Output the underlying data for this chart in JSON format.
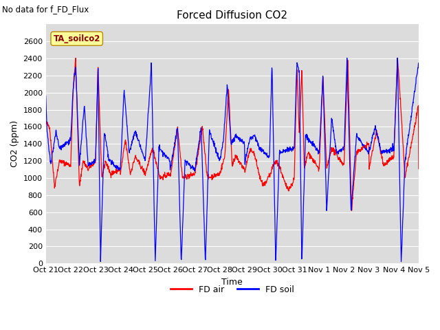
{
  "title": "Forced Diffusion CO2",
  "subtitle": "No data for f_FD_Flux",
  "annotation": "TA_soilco2",
  "xlabel": "Time",
  "ylabel": "CO2 (ppm)",
  "ylim": [
    0,
    2800
  ],
  "yticks": [
    0,
    200,
    400,
    600,
    800,
    1000,
    1200,
    1400,
    1600,
    1800,
    2000,
    2200,
    2400,
    2600
  ],
  "line_color_air": "#FF0000",
  "line_color_soil": "#0000FF",
  "plot_bg_color": "#DCDCDC",
  "grid_color": "#FFFFFF",
  "legend_air": "FD air",
  "legend_soil": "FD soil",
  "xtick_labels": [
    "Oct 21",
    "Oct 22",
    "Oct 23",
    "Oct 24",
    "Oct 25",
    "Oct 26",
    "Oct 27",
    "Oct 28",
    "Oct 29",
    "Oct 30",
    "Oct 31",
    "Nov 1",
    "Nov 2",
    "Nov 3",
    "Nov 4",
    "Nov 5"
  ],
  "title_fontsize": 11,
  "axis_fontsize": 9,
  "tick_fontsize": 8
}
